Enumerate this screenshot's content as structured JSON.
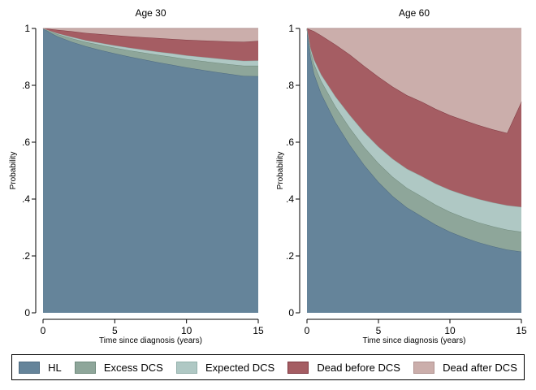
{
  "colors": {
    "HL": "#65849a",
    "Excess DCS": "#8ea69a",
    "Expected DCS": "#afc8c4",
    "Dead before DCS": "#a55d63",
    "Dead after DCS": "#cbaeab",
    "HL_line": "#4d6a80",
    "Excess DCS_line": "#6f8a7c",
    "Expected DCS_line": "#93b0ab",
    "Dead before DCS_line": "#7e3740",
    "Dead after DCS_line": "#b09290"
  },
  "legend": {
    "items": [
      "HL",
      "Excess DCS",
      "Expected DCS",
      "Dead before DCS",
      "Dead after DCS"
    ]
  },
  "chart_data": [
    {
      "type": "area",
      "stacked": true,
      "title": "Age 30",
      "xlabel": "Time since diagnosis (years)",
      "ylabel": "Probability",
      "xlim": [
        0,
        15
      ],
      "ylim": [
        0,
        1
      ],
      "xticks": [
        0,
        5,
        10,
        15
      ],
      "xtick_labels": [
        "0",
        "5",
        "10",
        "15"
      ],
      "yticks": [
        0,
        0.2,
        0.4,
        0.6,
        0.8,
        1
      ],
      "ytick_labels": [
        "0",
        ".2",
        ".4",
        ".6",
        ".8",
        "1"
      ],
      "x": [
        0,
        0.5,
        1,
        2,
        3,
        4,
        5,
        6,
        7,
        8,
        9,
        10,
        11,
        12,
        13,
        14,
        15
      ],
      "series": [
        {
          "name": "HL",
          "values": [
            1.0,
            0.985,
            0.972,
            0.953,
            0.937,
            0.924,
            0.912,
            0.901,
            0.891,
            0.881,
            0.872,
            0.863,
            0.855,
            0.847,
            0.84,
            0.833,
            0.832
          ]
        },
        {
          "name": "Excess DCS",
          "values": [
            0.0,
            0.004,
            0.008,
            0.012,
            0.015,
            0.018,
            0.02,
            0.022,
            0.024,
            0.026,
            0.028,
            0.029,
            0.031,
            0.033,
            0.034,
            0.036,
            0.037
          ]
        },
        {
          "name": "Expected DCS",
          "values": [
            0.0,
            0.002,
            0.003,
            0.005,
            0.006,
            0.007,
            0.008,
            0.009,
            0.01,
            0.011,
            0.012,
            0.013,
            0.014,
            0.015,
            0.016,
            0.017,
            0.018
          ]
        },
        {
          "name": "Dead before DCS",
          "values": [
            0.0,
            0.007,
            0.012,
            0.02,
            0.026,
            0.031,
            0.036,
            0.04,
            0.044,
            0.048,
            0.051,
            0.055,
            0.058,
            0.061,
            0.064,
            0.067,
            0.069
          ]
        },
        {
          "name": "Dead after DCS",
          "values": [
            0.0,
            0.002,
            0.005,
            0.01,
            0.016,
            0.02,
            0.024,
            0.028,
            0.031,
            0.034,
            0.037,
            0.04,
            0.042,
            0.044,
            0.046,
            0.047,
            0.044
          ]
        }
      ]
    },
    {
      "type": "area",
      "stacked": true,
      "title": "Age 60",
      "xlabel": "Time since diagnosis (years)",
      "ylabel": "Probability",
      "xlim": [
        0,
        15
      ],
      "ylim": [
        0,
        1
      ],
      "xticks": [
        0,
        5,
        10,
        15
      ],
      "xtick_labels": [
        "0",
        "5",
        "10",
        "15"
      ],
      "yticks": [
        0,
        0.2,
        0.4,
        0.6,
        0.8,
        1
      ],
      "ytick_labels": [
        "0",
        ".2",
        ".4",
        ".6",
        ".8",
        "1"
      ],
      "x": [
        0,
        0.25,
        0.5,
        1,
        2,
        3,
        4,
        5,
        6,
        7,
        8,
        9,
        10,
        11,
        12,
        13,
        14,
        15
      ],
      "series": [
        {
          "name": "HL",
          "values": [
            1.0,
            0.9,
            0.84,
            0.77,
            0.67,
            0.59,
            0.52,
            0.46,
            0.41,
            0.37,
            0.34,
            0.31,
            0.285,
            0.265,
            0.248,
            0.234,
            0.222,
            0.215
          ]
        },
        {
          "name": "Excess DCS",
          "values": [
            0.0,
            0.02,
            0.035,
            0.045,
            0.055,
            0.06,
            0.063,
            0.066,
            0.068,
            0.069,
            0.07,
            0.07,
            0.07,
            0.07,
            0.07,
            0.07,
            0.07,
            0.07
          ]
        },
        {
          "name": "Expected DCS",
          "values": [
            0.0,
            0.01,
            0.015,
            0.022,
            0.035,
            0.045,
            0.052,
            0.058,
            0.063,
            0.067,
            0.071,
            0.074,
            0.077,
            0.08,
            0.082,
            0.084,
            0.086,
            0.087
          ]
        },
        {
          "name": "Dead before DCS",
          "values": [
            0.0,
            0.065,
            0.1,
            0.138,
            0.183,
            0.213,
            0.233,
            0.246,
            0.254,
            0.259,
            0.262,
            0.263,
            0.263,
            0.262,
            0.26,
            0.257,
            0.254,
            0.37
          ]
        },
        {
          "name": "Dead after DCS",
          "values": [
            0.0,
            0.005,
            0.01,
            0.025,
            0.057,
            0.092,
            0.132,
            0.17,
            0.205,
            0.235,
            0.257,
            0.283,
            0.305,
            0.323,
            0.34,
            0.355,
            0.368,
            0.258
          ]
        }
      ]
    }
  ]
}
